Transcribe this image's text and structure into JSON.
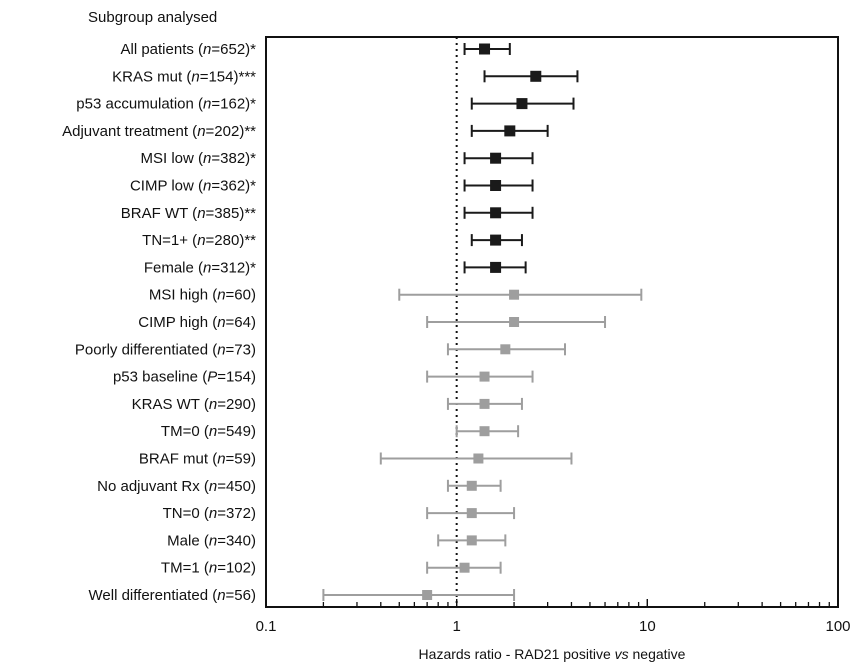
{
  "chart_data": {
    "type": "forest",
    "header": "Subgroup analysed",
    "xlabel_parts": [
      {
        "text": "Hazards ratio - RAD21 positive ",
        "italic": false
      },
      {
        "text": "vs",
        "italic": true
      },
      {
        "text": " negative",
        "italic": false
      }
    ],
    "x_scale": "log",
    "xlim": [
      0.1,
      100
    ],
    "x_ticks": [
      0.1,
      1,
      10,
      100
    ],
    "x_tick_labels": [
      "0.1",
      "1",
      "10",
      "100"
    ],
    "reference_line": 1,
    "colors": {
      "significant": "#1a1a1a",
      "not_significant": "#9e9e9e"
    },
    "rows": [
      {
        "label": [
          {
            "t": "All patients ("
          },
          {
            "t": "n",
            "i": true
          },
          {
            "t": "=652)*"
          }
        ],
        "hr": 1.4,
        "lo": 1.1,
        "hi": 1.9,
        "significant": true
      },
      {
        "label": [
          {
            "t": "KRAS mut ("
          },
          {
            "t": "n",
            "i": true
          },
          {
            "t": "=154)***"
          }
        ],
        "hr": 2.6,
        "lo": 1.4,
        "hi": 4.3,
        "significant": true
      },
      {
        "label": [
          {
            "t": "p53 accumulation ("
          },
          {
            "t": "n",
            "i": true
          },
          {
            "t": "=162)*"
          }
        ],
        "hr": 2.2,
        "lo": 1.2,
        "hi": 4.1,
        "significant": true
      },
      {
        "label": [
          {
            "t": "Adjuvant treatment ("
          },
          {
            "t": "n",
            "i": true
          },
          {
            "t": "=202)**"
          }
        ],
        "hr": 1.9,
        "lo": 1.2,
        "hi": 3.0,
        "significant": true
      },
      {
        "label": [
          {
            "t": "MSI low ("
          },
          {
            "t": "n",
            "i": true
          },
          {
            "t": "=382)*"
          }
        ],
        "hr": 1.6,
        "lo": 1.1,
        "hi": 2.5,
        "significant": true
      },
      {
        "label": [
          {
            "t": "CIMP low ("
          },
          {
            "t": "n",
            "i": true
          },
          {
            "t": "=362)*"
          }
        ],
        "hr": 1.6,
        "lo": 1.1,
        "hi": 2.5,
        "significant": true
      },
      {
        "label": [
          {
            "t": "BRAF WT ("
          },
          {
            "t": "n",
            "i": true
          },
          {
            "t": "=385)**"
          }
        ],
        "hr": 1.6,
        "lo": 1.1,
        "hi": 2.5,
        "significant": true
      },
      {
        "label": [
          {
            "t": "TN=1+ ("
          },
          {
            "t": "n",
            "i": true
          },
          {
            "t": "=280)**"
          }
        ],
        "hr": 1.6,
        "lo": 1.2,
        "hi": 2.2,
        "significant": true
      },
      {
        "label": [
          {
            "t": "Female ("
          },
          {
            "t": "n",
            "i": true
          },
          {
            "t": "=312)*"
          }
        ],
        "hr": 1.6,
        "lo": 1.1,
        "hi": 2.3,
        "significant": true
      },
      {
        "label": [
          {
            "t": "MSI high ("
          },
          {
            "t": "n",
            "i": true
          },
          {
            "t": "=60)"
          }
        ],
        "hr": 2.0,
        "lo": 0.5,
        "hi": 9.3,
        "significant": false
      },
      {
        "label": [
          {
            "t": "CIMP high ("
          },
          {
            "t": "n",
            "i": true
          },
          {
            "t": "=64)"
          }
        ],
        "hr": 2.0,
        "lo": 0.7,
        "hi": 6.0,
        "significant": false
      },
      {
        "label": [
          {
            "t": "Poorly differentiated ("
          },
          {
            "t": "n",
            "i": true
          },
          {
            "t": "=73)"
          }
        ],
        "hr": 1.8,
        "lo": 0.9,
        "hi": 3.7,
        "significant": false
      },
      {
        "label": [
          {
            "t": "p53 baseline ("
          },
          {
            "t": "P",
            "i": true
          },
          {
            "t": "=154)"
          }
        ],
        "hr": 1.4,
        "lo": 0.7,
        "hi": 2.5,
        "significant": false
      },
      {
        "label": [
          {
            "t": "KRAS WT ("
          },
          {
            "t": "n",
            "i": true
          },
          {
            "t": "=290)"
          }
        ],
        "hr": 1.4,
        "lo": 0.9,
        "hi": 2.2,
        "significant": false
      },
      {
        "label": [
          {
            "t": "TM=0 ("
          },
          {
            "t": "n",
            "i": true
          },
          {
            "t": "=549)"
          }
        ],
        "hr": 1.4,
        "lo": 1.0,
        "hi": 2.1,
        "significant": false
      },
      {
        "label": [
          {
            "t": "BRAF mut ("
          },
          {
            "t": "n",
            "i": true
          },
          {
            "t": "=59)"
          }
        ],
        "hr": 1.3,
        "lo": 0.4,
        "hi": 4.0,
        "significant": false
      },
      {
        "label": [
          {
            "t": "No adjuvant Rx ("
          },
          {
            "t": "n",
            "i": true
          },
          {
            "t": "=450)"
          }
        ],
        "hr": 1.2,
        "lo": 0.9,
        "hi": 1.7,
        "significant": false
      },
      {
        "label": [
          {
            "t": "TN=0 ("
          },
          {
            "t": "n",
            "i": true
          },
          {
            "t": "=372)"
          }
        ],
        "hr": 1.2,
        "lo": 0.7,
        "hi": 2.0,
        "significant": false
      },
      {
        "label": [
          {
            "t": "Male ("
          },
          {
            "t": "n",
            "i": true
          },
          {
            "t": "=340)"
          }
        ],
        "hr": 1.2,
        "lo": 0.8,
        "hi": 1.8,
        "significant": false
      },
      {
        "label": [
          {
            "t": "TM=1 ("
          },
          {
            "t": "n",
            "i": true
          },
          {
            "t": "=102)"
          }
        ],
        "hr": 1.1,
        "lo": 0.7,
        "hi": 1.7,
        "significant": false
      },
      {
        "label": [
          {
            "t": "Well differentiated ("
          },
          {
            "t": "n",
            "i": true
          },
          {
            "t": "=56)"
          }
        ],
        "hr": 0.7,
        "lo": 0.2,
        "hi": 2.0,
        "significant": false
      }
    ]
  }
}
